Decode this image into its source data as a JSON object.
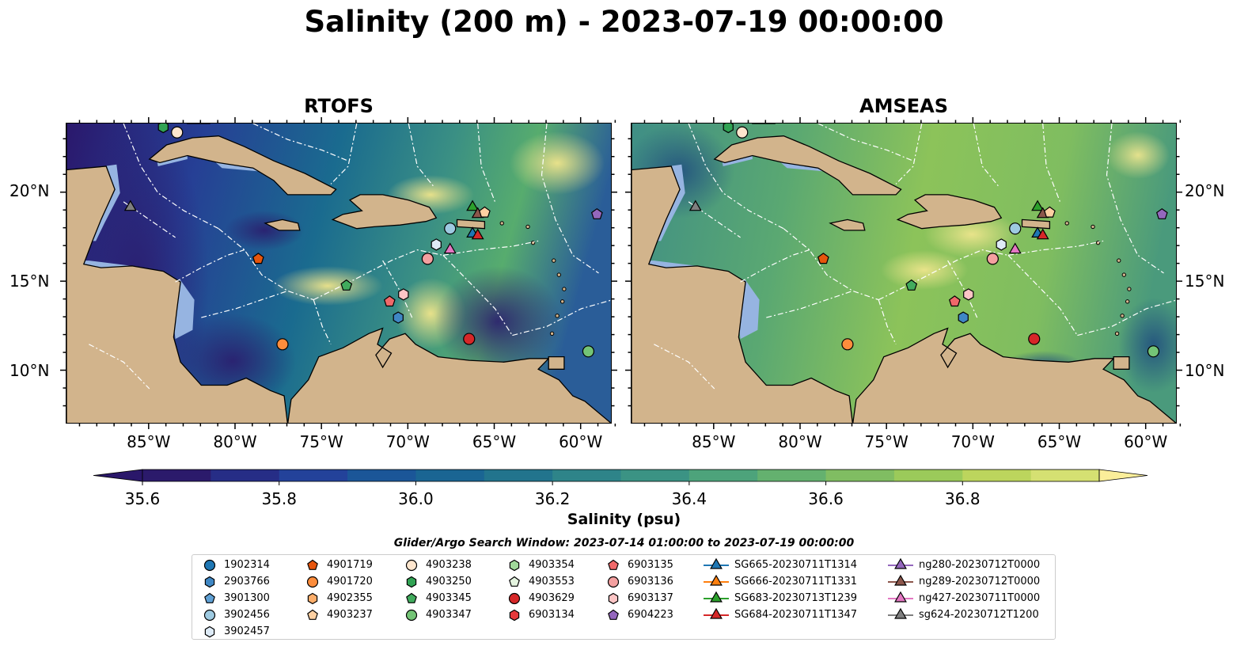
{
  "title": "Salinity (200 m) - 2023-07-19 00:00:00",
  "panels": [
    {
      "title": "RTOFS"
    },
    {
      "title": "AMSEAS"
    }
  ],
  "lat_ticks": [
    "20°N",
    "15°N",
    "10°N"
  ],
  "lon_ticks": [
    "85°W",
    "80°W",
    "75°W",
    "70°W",
    "65°W",
    "60°W"
  ],
  "colorbar": {
    "label": "Salinity (psu)",
    "ticks": [
      "35.6",
      "35.8",
      "36.0",
      "36.2",
      "36.4",
      "36.6",
      "36.8"
    ],
    "colormap": "haline",
    "extend": "both"
  },
  "colors": {
    "land": "#d2b48c",
    "shelf_water": "#96b4e1"
  },
  "search_window": "Glider/Argo Search Window: 2023-07-14 01:00:00 to 2023-07-19 00:00:00",
  "legend": [
    {
      "label": "1902314",
      "marker": "circle",
      "color": "#1f77b4"
    },
    {
      "label": "2903766",
      "marker": "hexagon",
      "color": "#3f87c4"
    },
    {
      "label": "3901300",
      "marker": "pentagon",
      "color": "#5fa0d4"
    },
    {
      "label": "3902456",
      "marker": "circle",
      "color": "#9ecae1"
    },
    {
      "label": "3902457",
      "marker": "hexagon",
      "color": "#deebf7"
    },
    {
      "label": "4901719",
      "marker": "pentagon",
      "color": "#e6550d"
    },
    {
      "label": "4901720",
      "marker": "circle",
      "color": "#fd8d3c"
    },
    {
      "label": "4902355",
      "marker": "hexagon",
      "color": "#fdae6b"
    },
    {
      "label": "4903237",
      "marker": "pentagon",
      "color": "#fdd0a2"
    },
    {
      "label": "4903238",
      "marker": "circle",
      "color": "#fee6ce"
    },
    {
      "label": "4903250",
      "marker": "hexagon",
      "color": "#31a354"
    },
    {
      "label": "4903345",
      "marker": "pentagon",
      "color": "#41ab5d"
    },
    {
      "label": "4903347",
      "marker": "circle",
      "color": "#74c476"
    },
    {
      "label": "4903354",
      "marker": "hexagon",
      "color": "#a1d99b"
    },
    {
      "label": "4903553",
      "marker": "pentagon",
      "color": "#e5f5e0"
    },
    {
      "label": "4903629",
      "marker": "circle",
      "color": "#d62728"
    },
    {
      "label": "6903134",
      "marker": "hexagon",
      "color": "#e6393b"
    },
    {
      "label": "6903135",
      "marker": "pentagon",
      "color": "#f0696a"
    },
    {
      "label": "6903136",
      "marker": "circle",
      "color": "#f4a0a0"
    },
    {
      "label": "6903137",
      "marker": "hexagon",
      "color": "#fcc5c5"
    },
    {
      "label": "6904223",
      "marker": "pentagon",
      "color": "#9467bd"
    },
    {
      "label": "SG665-20230711T1314",
      "marker": "triangle",
      "color": "#1f77b4",
      "line": true
    },
    {
      "label": "SG666-20230711T1331",
      "marker": "triangle",
      "color": "#ff7f0e",
      "line": true
    },
    {
      "label": "SG683-20230713T1239",
      "marker": "triangle",
      "color": "#2ca02c",
      "line": true
    },
    {
      "label": "SG684-20230711T1347",
      "marker": "triangle",
      "color": "#d62728",
      "line": true
    },
    {
      "label": "ng280-20230712T0000",
      "marker": "triangle",
      "color": "#9467bd",
      "line": true
    },
    {
      "label": "ng289-20230712T0000",
      "marker": "triangle",
      "color": "#8c564b",
      "line": true
    },
    {
      "label": "ng427-20230711T0000",
      "marker": "triangle",
      "color": "#e377c2",
      "line": true
    },
    {
      "label": "sg624-20230712T1200",
      "marker": "triangle",
      "color": "#7f7f7f",
      "line": true
    }
  ],
  "observations": [
    {
      "id": "4903250",
      "lon": -84.2,
      "lat": 23.7
    },
    {
      "id": "4903238",
      "lon": -83.4,
      "lat": 23.4
    },
    {
      "id": "sg624-20230712T1200",
      "lon": -86.1,
      "lat": 19.2
    },
    {
      "id": "4901719",
      "lon": -78.7,
      "lat": 16.3
    },
    {
      "id": "4903345",
      "lon": -73.6,
      "lat": 14.8
    },
    {
      "id": "4901720",
      "lon": -77.3,
      "lat": 11.5
    },
    {
      "id": "6903135",
      "lon": -71.1,
      "lat": 13.9
    },
    {
      "id": "6903137",
      "lon": -70.3,
      "lat": 14.3
    },
    {
      "id": "2903766",
      "lon": -70.6,
      "lat": 13.0
    },
    {
      "id": "6903136",
      "lon": -68.9,
      "lat": 16.3
    },
    {
      "id": "3902457",
      "lon": -68.4,
      "lat": 17.1
    },
    {
      "id": "3902456",
      "lon": -67.6,
      "lat": 18.0
    },
    {
      "id": "ng427-20230711T0000",
      "lon": -67.6,
      "lat": 16.8
    },
    {
      "id": "SG683-20230713T1239",
      "lon": -66.3,
      "lat": 19.2
    },
    {
      "id": "ng289-20230712T0000",
      "lon": -66.0,
      "lat": 18.8
    },
    {
      "id": "SG665-20230711T1314",
      "lon": -66.3,
      "lat": 17.7
    },
    {
      "id": "SG684-20230711T1347",
      "lon": -66.0,
      "lat": 17.6
    },
    {
      "id": "4903237",
      "lon": -65.6,
      "lat": 18.9
    },
    {
      "id": "4903629",
      "lon": -66.5,
      "lat": 11.8
    },
    {
      "id": "4903347",
      "lon": -59.6,
      "lat": 11.1
    },
    {
      "id": "6904223",
      "lon": -59.1,
      "lat": 18.8
    }
  ]
}
